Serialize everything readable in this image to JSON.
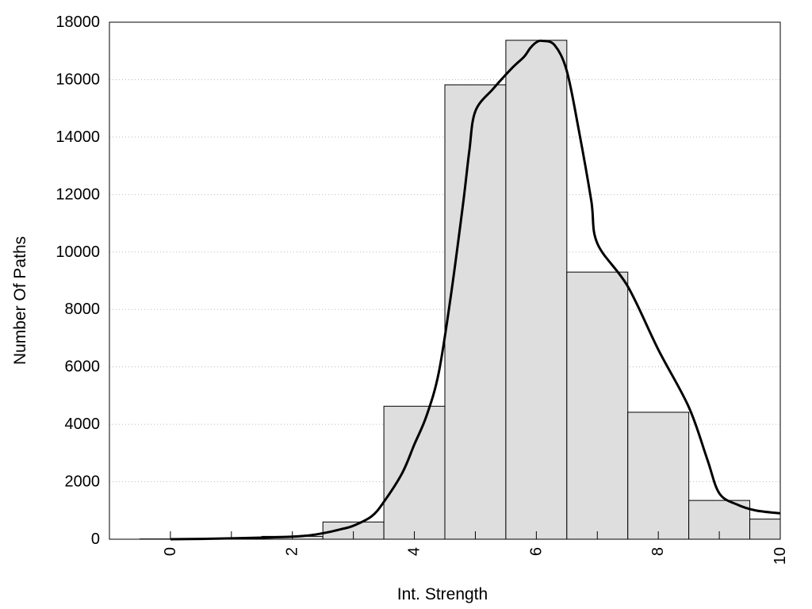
{
  "chart_data": {
    "type": "bar",
    "title": "",
    "xlabel": "Int. Strength",
    "ylabel": "Number Of Paths",
    "xlim": [
      -1,
      10
    ],
    "ylim": [
      0,
      18000
    ],
    "grid": {
      "y": true,
      "x": false,
      "style": "dotted"
    },
    "x_ticks": [
      0,
      2,
      4,
      6,
      8,
      10
    ],
    "x_tick_labels": [
      "0",
      "2",
      "4",
      "6",
      "8",
      "10"
    ],
    "y_ticks": [
      0,
      2000,
      4000,
      6000,
      8000,
      10000,
      12000,
      14000,
      16000,
      18000
    ],
    "y_tick_labels": [
      "0",
      "2000",
      "4000",
      "6000",
      "8000",
      "10000",
      "12000",
      "14000",
      "16000",
      "18000"
    ],
    "bin_width": 1,
    "bars": {
      "x": [
        0,
        1,
        2,
        3,
        4,
        5,
        6,
        7,
        8,
        9,
        10
      ],
      "values": [
        10,
        20,
        100,
        600,
        4630,
        15820,
        17370,
        9300,
        4420,
        1350,
        700
      ]
    },
    "curve": {
      "x": [
        0,
        0.5,
        1,
        1.5,
        2,
        2.3,
        2.6,
        2.8,
        3,
        3.3,
        3.5,
        3.8,
        4,
        4.2,
        4.4,
        4.6,
        4.8,
        4.9,
        5,
        5.3,
        5.6,
        5.8,
        5.9,
        6,
        6.1,
        6.3,
        6.5,
        6.7,
        6.9,
        7,
        7.5,
        8,
        8.5,
        8.8,
        9,
        9.3,
        9.6,
        10
      ],
      "y": [
        0,
        10,
        30,
        55,
        90,
        140,
        250,
        350,
        470,
        800,
        1300,
        2300,
        3300,
        4300,
        5800,
        8500,
        11700,
        13500,
        14900,
        15700,
        16400,
        16800,
        17100,
        17300,
        17350,
        17200,
        16300,
        14200,
        11800,
        10300,
        8800,
        6600,
        4600,
        2800,
        1600,
        1200,
        1000,
        900
      ]
    },
    "colors": {
      "bar_fill": "#dedede",
      "bar_stroke": "#000000",
      "curve": "#000000",
      "grid": "#bbbbbb"
    }
  }
}
